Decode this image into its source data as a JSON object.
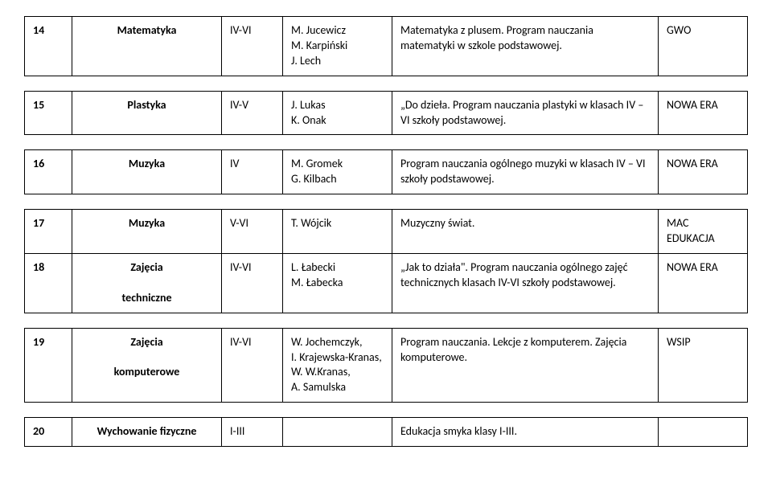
{
  "rows": [
    {
      "num": "14",
      "subject": "Matematyka",
      "level": "IV-VI",
      "authors": "M. Jucewicz\nM. Karpiński\nJ. Lech",
      "description": "Matematyka z plusem. Program nauczania matematyki w szkole podstawowej.",
      "publisher": "GWO"
    },
    {
      "num": "15",
      "subject": "Plastyka",
      "level": "IV-V",
      "authors": "J. Lukas\nK. Onak",
      "description": "„Do dzieła. Program nauczania plastyki w klasach IV – VI szkoły podstawowej.",
      "publisher": "NOWA ERA"
    },
    {
      "num": "16",
      "subject": "Muzyka",
      "level": "IV",
      "authors": "M. Gromek\nG. Kilbach",
      "description": "Program nauczania ogólnego muzyki w klasach IV – VI szkoły podstawowej.",
      "publisher": "NOWA ERA"
    },
    {
      "num": "17",
      "subject": "Muzyka",
      "level": "V-VI",
      "authors": "T. Wójcik",
      "description": "Muzyczny świat.",
      "publisher": "MAC EDUKACJA"
    },
    {
      "num": "18",
      "subject": "Zajęcia\n\ntechniczne",
      "level": "IV-VI",
      "authors": "L. Łabecki\nM. Łabecka",
      "description": "„Jak to działa\". Program nauczania ogólnego zajęć technicznych klasach IV-VI szkoły podstawowej.",
      "publisher": "NOWA ERA"
    },
    {
      "num": "19",
      "subject": "Zajęcia\n\nkomputerowe",
      "level": "IV-VI",
      "authors": "W. Jochemczyk,\nI. Krajewska-Kranas, W. W.Kranas,\nA. Samulska",
      "description": "Program nauczania. Lekcje z komputerem. Zajęcia komputerowe.",
      "publisher": "WSIP"
    },
    {
      "num": "20",
      "subject": "Wychowanie fizyczne",
      "level": "I-III",
      "authors": "",
      "description": "Edukacja smyka klasy I-III.",
      "publisher": ""
    }
  ],
  "groups": [
    [
      0
    ],
    [
      1
    ],
    [
      2
    ],
    [
      3,
      4
    ],
    [
      5
    ],
    [
      6
    ]
  ]
}
